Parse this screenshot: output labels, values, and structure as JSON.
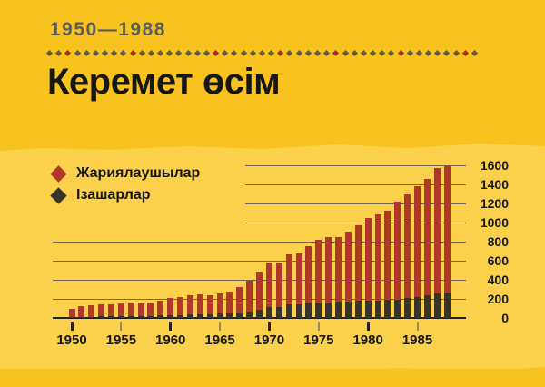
{
  "header": {
    "date_range": "1950—1988",
    "title": "Керемет өсім"
  },
  "legend": [
    {
      "label": "Жариялаушылар",
      "color": "#AE3928"
    },
    {
      "label": "Ізашарлар",
      "color": "#37332B"
    }
  ],
  "separator": {
    "diamond_count": 47,
    "red_positions": [
      2,
      9,
      18,
      25,
      31,
      38,
      45
    ],
    "gray_color": "#615A4E",
    "red_color": "#A13226"
  },
  "chart_data": {
    "type": "bar",
    "subtype": "overlaid",
    "title": "Керемет өсім",
    "xlabel": "",
    "ylabel": "",
    "ylim": [
      0,
      1600
    ],
    "grid": true,
    "legend_position": "top-left",
    "y_axis_side": "right",
    "y_ticks": [
      0,
      200,
      400,
      600,
      800,
      1000,
      1200,
      1400,
      1600
    ],
    "x_tick_labels": [
      "1950",
      "1955",
      "1960",
      "1965",
      "1970",
      "1975",
      "1980",
      "1985"
    ],
    "x": [
      1950,
      1951,
      1952,
      1953,
      1954,
      1955,
      1956,
      1957,
      1958,
      1959,
      1960,
      1961,
      1962,
      1963,
      1964,
      1965,
      1966,
      1967,
      1968,
      1969,
      1970,
      1971,
      1972,
      1973,
      1974,
      1975,
      1976,
      1977,
      1978,
      1979,
      1980,
      1981,
      1982,
      1983,
      1984,
      1985,
      1986,
      1987,
      1988
    ],
    "series": [
      {
        "name": "Жариялаушылар",
        "color": "#AE3928",
        "values": [
          95,
          120,
          135,
          145,
          140,
          150,
          165,
          150,
          160,
          185,
          210,
          215,
          240,
          245,
          240,
          255,
          275,
          320,
          390,
          490,
          585,
          580,
          665,
          680,
          750,
          820,
          845,
          845,
          905,
          975,
          1050,
          1090,
          1125,
          1220,
          1300,
          1380,
          1455,
          1570,
          1595
        ]
      },
      {
        "name": "Ізашарлар",
        "color": "#37332B",
        "values": [
          10,
          12,
          14,
          15,
          15,
          18,
          18,
          20,
          20,
          25,
          28,
          30,
          35,
          40,
          40,
          50,
          50,
          60,
          70,
          90,
          110,
          115,
          140,
          140,
          150,
          165,
          165,
          175,
          175,
          180,
          185,
          185,
          195,
          195,
          205,
          215,
          240,
          255,
          265
        ]
      }
    ]
  },
  "colors": {
    "background_deep": "#F9C31F",
    "background_light": "#FBD04B",
    "bar_red": "#AE3928",
    "bar_dark": "#37332B",
    "grid": "#6F6752",
    "axis": "#23201A",
    "tick_minor": "#958B66",
    "text_primary": "#161616",
    "text_secondary": "#5B5B5E"
  }
}
